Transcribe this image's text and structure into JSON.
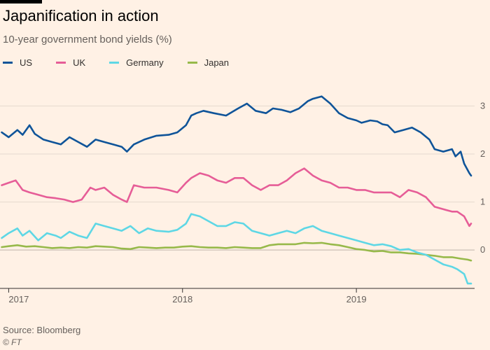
{
  "header": {
    "title": "Japanification in action",
    "subtitle": "10-year government bond yields (%)"
  },
  "footer": {
    "source": "Source: Bloomberg",
    "copyright": "© FT"
  },
  "colors": {
    "background": "#fff1e5",
    "grid": "#e6d9ce",
    "US": "#0f5499",
    "UK": "#e65d97",
    "Germany": "#5ed7e5",
    "Japan": "#97b94a"
  },
  "chart_data": {
    "type": "line",
    "title": "Japanification in action",
    "subtitle": "10-year government bond yields (%)",
    "xlabel": "",
    "ylabel": "10-year government bond yields (%)",
    "xlim": [
      2016.95,
      2019.68
    ],
    "ylim": [
      -0.8,
      3.4
    ],
    "grid": true,
    "legend_position": "top-left",
    "y_ticks": [
      {
        "value": 3,
        "label": "3"
      },
      {
        "value": 2,
        "label": "2"
      },
      {
        "value": 1,
        "label": "1"
      },
      {
        "value": 0,
        "label": "0"
      }
    ],
    "x_ticks": [
      {
        "value": 2017,
        "label": "2017"
      },
      {
        "value": 2018,
        "label": "2018"
      },
      {
        "value": 2019,
        "label": "2019"
      }
    ],
    "series": [
      {
        "name": "US",
        "x": [
          2016.96,
          2017.0,
          2017.05,
          2017.08,
          2017.12,
          2017.15,
          2017.2,
          2017.25,
          2017.3,
          2017.35,
          2017.4,
          2017.45,
          2017.5,
          2017.55,
          2017.6,
          2017.65,
          2017.68,
          2017.72,
          2017.78,
          2017.85,
          2017.92,
          2017.97,
          2018.02,
          2018.05,
          2018.08,
          2018.12,
          2018.18,
          2018.25,
          2018.32,
          2018.37,
          2018.42,
          2018.48,
          2018.52,
          2018.57,
          2018.62,
          2018.67,
          2018.72,
          2018.75,
          2018.8,
          2018.85,
          2018.9,
          2018.95,
          2019.0,
          2019.03,
          2019.08,
          2019.12,
          2019.15,
          2019.18,
          2019.22,
          2019.27,
          2019.32,
          2019.37,
          2019.42,
          2019.45,
          2019.5,
          2019.55,
          2019.57,
          2019.6,
          2019.62,
          2019.65,
          2019.66
        ],
        "values": [
          2.45,
          2.35,
          2.5,
          2.4,
          2.6,
          2.42,
          2.3,
          2.25,
          2.2,
          2.35,
          2.25,
          2.15,
          2.3,
          2.25,
          2.2,
          2.15,
          2.05,
          2.2,
          2.3,
          2.38,
          2.4,
          2.45,
          2.6,
          2.8,
          2.85,
          2.9,
          2.85,
          2.8,
          2.95,
          3.05,
          2.9,
          2.85,
          2.95,
          2.92,
          2.87,
          2.95,
          3.1,
          3.15,
          3.2,
          3.05,
          2.85,
          2.75,
          2.7,
          2.65,
          2.7,
          2.68,
          2.62,
          2.6,
          2.45,
          2.5,
          2.55,
          2.45,
          2.3,
          2.1,
          2.05,
          2.1,
          1.95,
          2.05,
          1.8,
          1.6,
          1.55
        ]
      },
      {
        "name": "UK",
        "x": [
          2016.96,
          2017.0,
          2017.04,
          2017.08,
          2017.12,
          2017.17,
          2017.22,
          2017.27,
          2017.32,
          2017.37,
          2017.42,
          2017.47,
          2017.5,
          2017.55,
          2017.6,
          2017.65,
          2017.68,
          2017.72,
          2017.78,
          2017.85,
          2017.92,
          2017.97,
          2018.02,
          2018.05,
          2018.1,
          2018.15,
          2018.2,
          2018.25,
          2018.3,
          2018.35,
          2018.4,
          2018.45,
          2018.5,
          2018.55,
          2018.6,
          2018.65,
          2018.7,
          2018.75,
          2018.8,
          2018.85,
          2018.9,
          2018.95,
          2019.0,
          2019.05,
          2019.1,
          2019.15,
          2019.2,
          2019.25,
          2019.3,
          2019.35,
          2019.4,
          2019.45,
          2019.5,
          2019.55,
          2019.58,
          2019.62,
          2019.65,
          2019.66
        ],
        "values": [
          1.35,
          1.4,
          1.45,
          1.25,
          1.2,
          1.15,
          1.1,
          1.08,
          1.05,
          1.0,
          1.05,
          1.3,
          1.25,
          1.3,
          1.15,
          1.05,
          1.0,
          1.35,
          1.3,
          1.3,
          1.25,
          1.2,
          1.4,
          1.5,
          1.6,
          1.55,
          1.45,
          1.4,
          1.5,
          1.5,
          1.35,
          1.25,
          1.35,
          1.35,
          1.45,
          1.6,
          1.7,
          1.55,
          1.45,
          1.4,
          1.3,
          1.3,
          1.25,
          1.25,
          1.2,
          1.2,
          1.2,
          1.1,
          1.25,
          1.2,
          1.1,
          0.9,
          0.85,
          0.8,
          0.8,
          0.7,
          0.5,
          0.55
        ]
      },
      {
        "name": "Germany",
        "x": [
          2016.96,
          2017.0,
          2017.05,
          2017.08,
          2017.12,
          2017.17,
          2017.22,
          2017.27,
          2017.3,
          2017.35,
          2017.4,
          2017.45,
          2017.5,
          2017.55,
          2017.6,
          2017.65,
          2017.7,
          2017.75,
          2017.8,
          2017.85,
          2017.92,
          2017.97,
          2018.02,
          2018.05,
          2018.1,
          2018.15,
          2018.2,
          2018.25,
          2018.3,
          2018.35,
          2018.4,
          2018.45,
          2018.5,
          2018.55,
          2018.6,
          2018.65,
          2018.7,
          2018.75,
          2018.8,
          2018.85,
          2018.9,
          2018.95,
          2019.0,
          2019.05,
          2019.1,
          2019.15,
          2019.2,
          2019.25,
          2019.3,
          2019.35,
          2019.4,
          2019.45,
          2019.5,
          2019.55,
          2019.58,
          2019.62,
          2019.64,
          2019.66
        ],
        "values": [
          0.25,
          0.35,
          0.45,
          0.3,
          0.4,
          0.2,
          0.35,
          0.3,
          0.25,
          0.38,
          0.3,
          0.25,
          0.55,
          0.5,
          0.45,
          0.4,
          0.5,
          0.35,
          0.45,
          0.4,
          0.38,
          0.42,
          0.55,
          0.75,
          0.7,
          0.6,
          0.5,
          0.5,
          0.58,
          0.55,
          0.4,
          0.35,
          0.3,
          0.35,
          0.4,
          0.35,
          0.45,
          0.5,
          0.4,
          0.35,
          0.3,
          0.25,
          0.2,
          0.15,
          0.1,
          0.12,
          0.08,
          0.0,
          0.02,
          -0.05,
          -0.1,
          -0.2,
          -0.3,
          -0.35,
          -0.4,
          -0.5,
          -0.7,
          -0.7
        ]
      },
      {
        "name": "Japan",
        "x": [
          2016.96,
          2017.0,
          2017.05,
          2017.1,
          2017.15,
          2017.2,
          2017.25,
          2017.3,
          2017.35,
          2017.4,
          2017.45,
          2017.5,
          2017.55,
          2017.6,
          2017.65,
          2017.7,
          2017.75,
          2017.8,
          2017.85,
          2017.9,
          2017.95,
          2018.0,
          2018.05,
          2018.1,
          2018.15,
          2018.2,
          2018.25,
          2018.3,
          2018.35,
          2018.4,
          2018.45,
          2018.5,
          2018.55,
          2018.6,
          2018.65,
          2018.7,
          2018.75,
          2018.8,
          2018.85,
          2018.9,
          2018.95,
          2019.0,
          2019.05,
          2019.1,
          2019.15,
          2019.2,
          2019.25,
          2019.3,
          2019.35,
          2019.4,
          2019.45,
          2019.5,
          2019.55,
          2019.6,
          2019.64,
          2019.66
        ],
        "values": [
          0.06,
          0.08,
          0.1,
          0.07,
          0.08,
          0.06,
          0.04,
          0.05,
          0.04,
          0.06,
          0.05,
          0.08,
          0.07,
          0.06,
          0.03,
          0.02,
          0.06,
          0.05,
          0.04,
          0.05,
          0.05,
          0.07,
          0.08,
          0.06,
          0.05,
          0.05,
          0.04,
          0.06,
          0.05,
          0.04,
          0.04,
          0.1,
          0.12,
          0.12,
          0.12,
          0.15,
          0.14,
          0.15,
          0.12,
          0.1,
          0.06,
          0.02,
          0.0,
          -0.03,
          -0.02,
          -0.05,
          -0.05,
          -0.07,
          -0.08,
          -0.1,
          -0.12,
          -0.15,
          -0.15,
          -0.18,
          -0.2,
          -0.22
        ]
      }
    ]
  }
}
